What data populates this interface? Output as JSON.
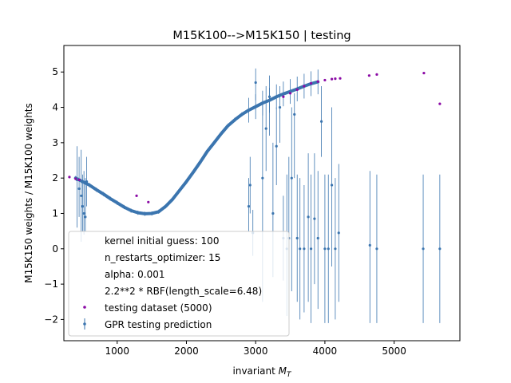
{
  "chart_data": {
    "type": "scatter",
    "title": "M15K100-->M15K150 | testing",
    "xlabel_main": "invariant ",
    "xlabel_math": "M",
    "xlabel_sub": "T",
    "ylabel": "M15K150 weights / M15K100 weights",
    "xlim": [
      230,
      5950
    ],
    "ylim": [
      -2.6,
      5.75
    ],
    "xticks": [
      1000,
      2000,
      3000,
      4000,
      5000
    ],
    "yticks": [
      -2,
      -1,
      0,
      1,
      2,
      3,
      4,
      5
    ],
    "grid": false,
    "legend_placement": "lower-left",
    "colors": {
      "prediction": "#3b75af",
      "testing": "#8b0aa5"
    },
    "legend_entries": [
      "kernel initial guess: 100",
      "n_restarts_optimizer: 15",
      "alpha: 0.001",
      "2.2**2 * RBF(length_scale=6.48)",
      "testing dataset (5000)",
      "GPR testing prediction"
    ],
    "gpr_prediction_curve": {
      "x": [
        400,
        500,
        600,
        700,
        800,
        900,
        1000,
        1100,
        1200,
        1300,
        1400,
        1500,
        1600,
        1700,
        1800,
        1900,
        2000,
        2100,
        2200,
        2300,
        2400,
        2500,
        2600,
        2700,
        2800,
        2900,
        3000,
        3100,
        3200,
        3300,
        3400,
        3500,
        3600,
        3700,
        3800,
        3900
      ],
      "y": [
        2.0,
        1.9,
        1.8,
        1.67,
        1.55,
        1.42,
        1.3,
        1.18,
        1.08,
        1.02,
        0.99,
        1.0,
        1.05,
        1.2,
        1.4,
        1.65,
        1.9,
        2.17,
        2.45,
        2.75,
        3.0,
        3.25,
        3.48,
        3.65,
        3.8,
        3.92,
        4.02,
        4.12,
        4.2,
        4.3,
        4.38,
        4.45,
        4.52,
        4.6,
        4.67,
        4.72
      ]
    },
    "gpr_points_with_errors": [
      {
        "x": 420,
        "y": 1.95,
        "lo": 0.6,
        "hi": 2.9
      },
      {
        "x": 450,
        "y": 1.7,
        "lo": 0.9,
        "hi": 2.6
      },
      {
        "x": 480,
        "y": 1.5,
        "lo": 0.2,
        "hi": 2.8
      },
      {
        "x": 500,
        "y": 1.2,
        "lo": 0.5,
        "hi": 2.1
      },
      {
        "x": 520,
        "y": 1.0,
        "lo": 0.4,
        "hi": 2.2
      },
      {
        "x": 540,
        "y": 0.9,
        "lo": 0.5,
        "hi": 2.0
      },
      {
        "x": 560,
        "y": 1.9,
        "lo": 1.2,
        "hi": 2.6
      },
      {
        "x": 2900,
        "y": 1.2,
        "lo": 0.5,
        "hi": 2.0
      },
      {
        "x": 2920,
        "y": 1.8,
        "lo": 1.0,
        "hi": 2.6
      },
      {
        "x": 2960,
        "y": 0.45,
        "lo": -0.2,
        "hi": 1.1
      },
      {
        "x": 3000,
        "y": 4.7,
        "lo": 4.2,
        "hi": 5.1
      },
      {
        "x": 3100,
        "y": 2.0,
        "lo": -1.5,
        "hi": 4.2
      },
      {
        "x": 3150,
        "y": 3.4,
        "lo": 2.2,
        "hi": 4.6
      },
      {
        "x": 3200,
        "y": 4.3,
        "lo": 3.2,
        "hi": 4.9
      },
      {
        "x": 3250,
        "y": 1.0,
        "lo": -0.8,
        "hi": 3.0
      },
      {
        "x": 3300,
        "y": 2.9,
        "lo": 1.8,
        "hi": 4.0
      },
      {
        "x": 3350,
        "y": 4.0,
        "lo": 3.0,
        "hi": 4.6
      },
      {
        "x": 3400,
        "y": 0.3,
        "lo": -0.9,
        "hi": 1.5
      },
      {
        "x": 3450,
        "y": 0.0,
        "lo": -1.9,
        "hi": 2.1
      },
      {
        "x": 3480,
        "y": 0.3,
        "lo": -2.0,
        "hi": 2.6
      },
      {
        "x": 3520,
        "y": 2.0,
        "lo": -1.2,
        "hi": 4.0
      },
      {
        "x": 3560,
        "y": 3.8,
        "lo": 2.0,
        "hi": 4.4
      },
      {
        "x": 3600,
        "y": 0.3,
        "lo": -1.5,
        "hi": 2.1
      },
      {
        "x": 3640,
        "y": 0.0,
        "lo": -2.0,
        "hi": 2.0
      },
      {
        "x": 3700,
        "y": 0.0,
        "lo": -1.8,
        "hi": 1.8
      },
      {
        "x": 3760,
        "y": 0.9,
        "lo": -1.5,
        "hi": 2.7
      },
      {
        "x": 3800,
        "y": 0.0,
        "lo": -2.1,
        "hi": 2.1
      },
      {
        "x": 3850,
        "y": 0.85,
        "lo": -1.0,
        "hi": 2.7
      },
      {
        "x": 3900,
        "y": 0.3,
        "lo": -1.7,
        "hi": 2.2
      },
      {
        "x": 3950,
        "y": 3.6,
        "lo": 2.6,
        "hi": 4.6
      },
      {
        "x": 4000,
        "y": 0.0,
        "lo": -2.1,
        "hi": 2.1
      },
      {
        "x": 4050,
        "y": 0.0,
        "lo": -2.1,
        "hi": 2.1
      },
      {
        "x": 4100,
        "y": 1.8,
        "lo": -0.5,
        "hi": 4.0
      },
      {
        "x": 4150,
        "y": 0.0,
        "lo": -2.0,
        "hi": 2.0
      },
      {
        "x": 4200,
        "y": 0.45,
        "lo": -1.5,
        "hi": 2.4
      },
      {
        "x": 4650,
        "y": 0.1,
        "lo": -2.1,
        "hi": 2.2
      },
      {
        "x": 4750,
        "y": 0.0,
        "lo": -2.1,
        "hi": 2.1
      },
      {
        "x": 5420,
        "y": 0.0,
        "lo": -2.1,
        "hi": 2.1
      },
      {
        "x": 5660,
        "y": 0.0,
        "lo": -2.1,
        "hi": 2.1
      }
    ],
    "testing_points": [
      {
        "x": 310,
        "y": 2.03
      },
      {
        "x": 400,
        "y": 1.98
      },
      {
        "x": 450,
        "y": 1.95
      },
      {
        "x": 1280,
        "y": 1.5
      },
      {
        "x": 1450,
        "y": 1.32
      },
      {
        "x": 3400,
        "y": 4.3
      },
      {
        "x": 3500,
        "y": 4.4
      },
      {
        "x": 3600,
        "y": 4.5
      },
      {
        "x": 3700,
        "y": 4.6
      },
      {
        "x": 3800,
        "y": 4.68
      },
      {
        "x": 3900,
        "y": 4.73
      },
      {
        "x": 4000,
        "y": 4.77
      },
      {
        "x": 4100,
        "y": 4.8
      },
      {
        "x": 4150,
        "y": 4.81
      },
      {
        "x": 4220,
        "y": 4.82
      },
      {
        "x": 4640,
        "y": 4.9
      },
      {
        "x": 4750,
        "y": 4.93
      },
      {
        "x": 5430,
        "y": 4.97
      },
      {
        "x": 5660,
        "y": 4.1
      }
    ]
  }
}
